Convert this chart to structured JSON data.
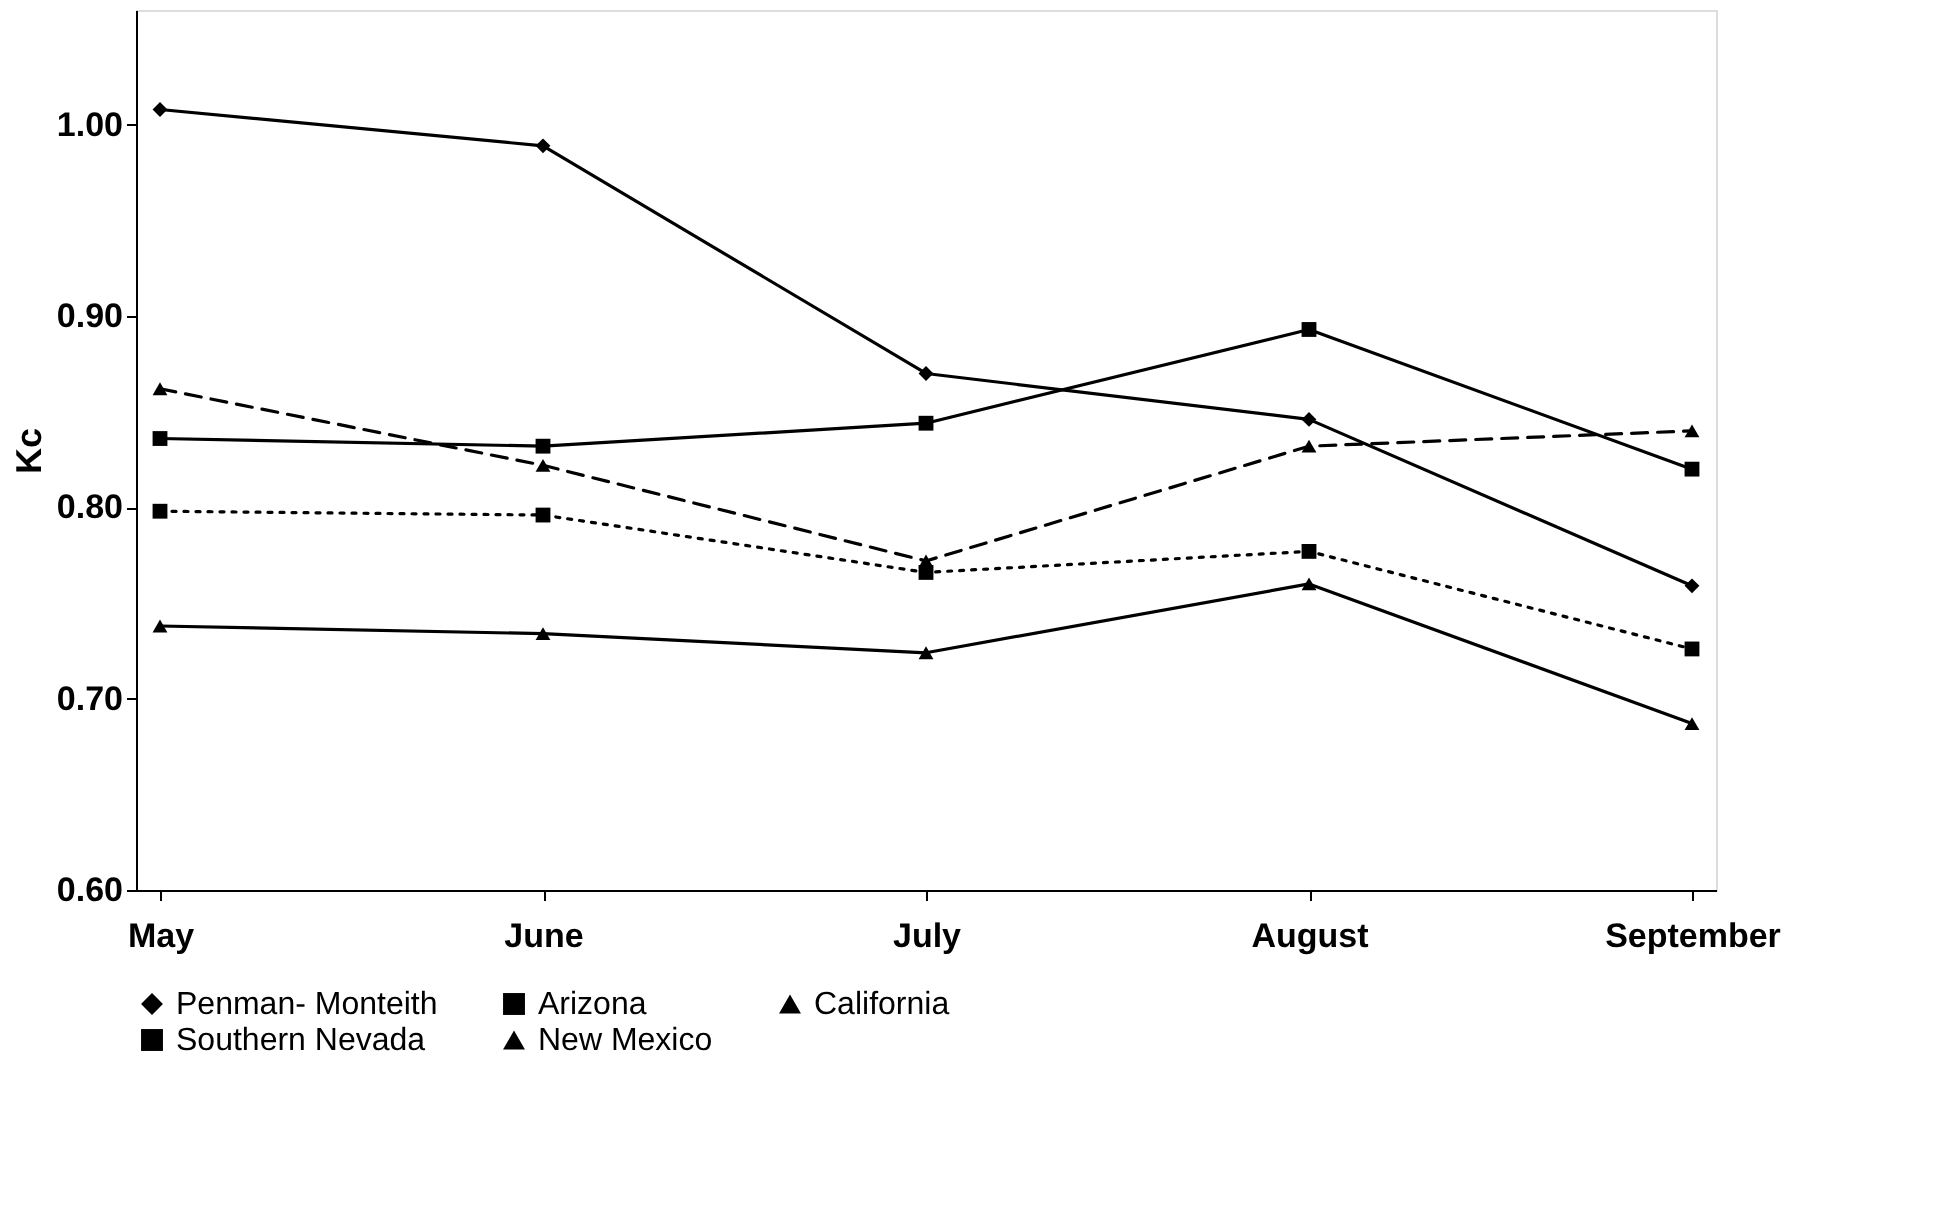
{
  "chart_data": {
    "type": "line",
    "ylabel": "Kc",
    "categories": [
      "May",
      "June",
      "July",
      "August",
      "September"
    ],
    "series": [
      {
        "name": "Penman- Monteith",
        "color": "#000000",
        "marker": "diamond",
        "line_style": "solid",
        "values": [
          1.008,
          0.989,
          0.87,
          0.846,
          0.759
        ]
      },
      {
        "name": "Arizona",
        "color": "#000000",
        "marker": "square",
        "line_style": "solid",
        "values": [
          0.836,
          0.832,
          0.844,
          0.893,
          0.82
        ]
      },
      {
        "name": "California",
        "color": "#000000",
        "marker": "triangle",
        "line_style": "dashed",
        "values": [
          0.862,
          0.822,
          0.772,
          0.832,
          0.84
        ]
      },
      {
        "name": "Southern  Nevada",
        "color": "#000000",
        "marker": "square",
        "line_style": "dotted",
        "values": [
          0.798,
          0.796,
          0.766,
          0.777,
          0.726
        ]
      },
      {
        "name": "New Mexico",
        "color": "#000000",
        "marker": "triangle",
        "line_style": "solid",
        "values": [
          0.738,
          0.734,
          0.724,
          0.76,
          0.687
        ]
      }
    ],
    "ylim": [
      0.6,
      1.06
    ],
    "yticks": [
      {
        "value": 0.6,
        "label": "0.60"
      },
      {
        "value": 0.7,
        "label": "0.70"
      },
      {
        "value": 0.8,
        "label": "0.80"
      },
      {
        "value": 0.9,
        "label": "0.90"
      },
      {
        "value": 1.0,
        "label": "1.00"
      }
    ],
    "grid": false,
    "legend": "bottom"
  }
}
